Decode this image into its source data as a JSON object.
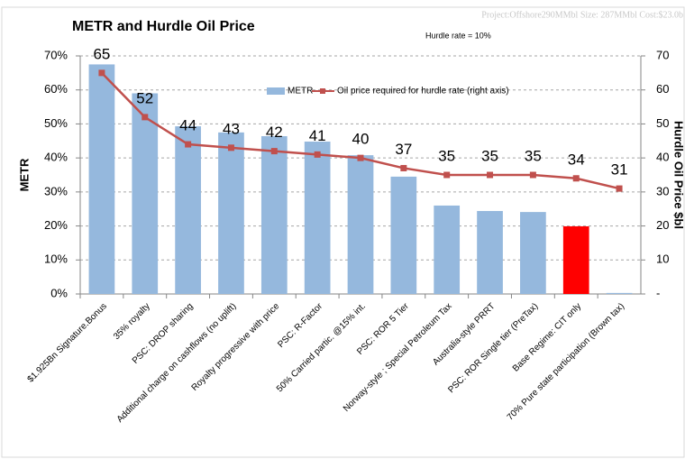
{
  "chart_data": {
    "type": "bar_line",
    "title": "METR and Hurdle Oil Price",
    "annotations": [
      "Project:Offshore290MMbl   Size: 287MMbl   Cost:$23.0b",
      "Hurdle rate =  10%"
    ],
    "ylabel": "METR",
    "y2label": "Hurdle Oil Price $bl",
    "categories": [
      "$1.925Bn Signature.Bonus",
      "35% royalty",
      "PSC: DROP sharing",
      "Additional charge on cashflows (no uplift)",
      "Royalty progressive with price",
      "PSC: R-Factor",
      "50% Carried partic. @15% int.",
      "PSC: ROR 5 Tier",
      "Norway-style ; Special Petroleum Tax",
      "Australia-style PRRT",
      "PSC: ROR Single tier  (PreTax)",
      "Base Regime: CIT only",
      "70% Pure state participation (Brown tax)"
    ],
    "series": [
      {
        "name": "METR",
        "type": "bar",
        "color": "#95b8dd",
        "colors": [
          "#95b8dd",
          "#95b8dd",
          "#95b8dd",
          "#95b8dd",
          "#95b8dd",
          "#95b8dd",
          "#95b8dd",
          "#95b8dd",
          "#95b8dd",
          "#95b8dd",
          "#95b8dd",
          "#ff0000",
          "#95b8dd"
        ],
        "values": [
          67.5,
          59,
          49.3,
          47.5,
          46.4,
          44.8,
          40.8,
          34.5,
          26,
          24.4,
          24.1,
          19.9,
          0.3
        ]
      },
      {
        "name": "Oil price required for hurdle rate (right axis)",
        "type": "line",
        "axis": "y2",
        "color": "#c0504d",
        "values": [
          65,
          52,
          44,
          43,
          42,
          41,
          40,
          37,
          35,
          35,
          35,
          34,
          31
        ]
      }
    ],
    "ylim": [
      0,
      70
    ],
    "yticks": [
      {
        "value": 0,
        "label": "0%"
      },
      {
        "value": 10,
        "label": "10%"
      },
      {
        "value": 20,
        "label": "20%"
      },
      {
        "value": 30,
        "label": "30%"
      },
      {
        "value": 40,
        "label": "40%"
      },
      {
        "value": 50,
        "label": "50%"
      },
      {
        "value": 60,
        "label": "60%"
      },
      {
        "value": 70,
        "label": "70%"
      }
    ],
    "y2lim": [
      0,
      70
    ],
    "y2ticks": [
      {
        "value": 0,
        "label": "-"
      },
      10,
      20,
      30,
      40,
      50,
      60,
      70
    ],
    "grid": true
  }
}
